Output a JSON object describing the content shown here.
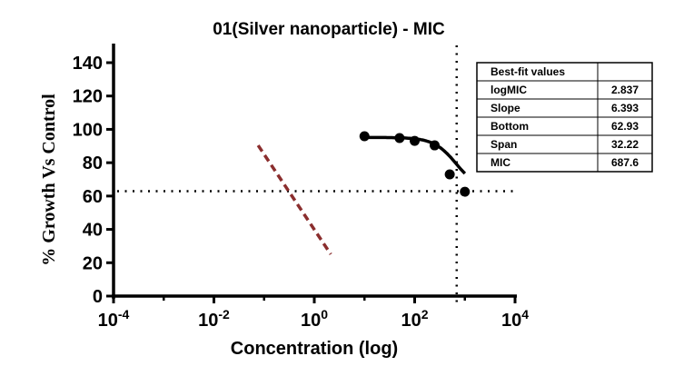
{
  "chart_data": {
    "type": "scatter",
    "title": "01(Silver nanoparticle) - MIC",
    "xlabel": "Concentration (log)",
    "ylabel": "% Growth Vs Control",
    "xscale": "log10",
    "xlim_log10": [
      -4,
      4
    ],
    "ylim": [
      0,
      140
    ],
    "x_ticks": [
      {
        "base": "10",
        "exp": "-4",
        "value_log10": -4
      },
      {
        "base": "10",
        "exp": "-2",
        "value_log10": -2
      },
      {
        "base": "10",
        "exp": "0",
        "value_log10": 0
      },
      {
        "base": "10",
        "exp": "2",
        "value_log10": 2
      },
      {
        "base": "10",
        "exp": "4",
        "value_log10": 4
      }
    ],
    "x_minor_ticks_log10": [
      -3,
      -1,
      1,
      3
    ],
    "y_ticks": [
      0,
      20,
      40,
      60,
      80,
      100,
      120,
      140
    ],
    "grid": false,
    "series": [
      {
        "name": "Silver nanoparticle",
        "marker": "filled-circle",
        "color": "#000000",
        "points": [
          {
            "x": 10,
            "y": 95.9
          },
          {
            "x": 50,
            "y": 94.8
          },
          {
            "x": 100,
            "y": 93.1
          },
          {
            "x": 250,
            "y": 90.4
          },
          {
            "x": 500,
            "y": 73.0
          },
          {
            "x": 1000,
            "y": 62.6
          }
        ],
        "fit": {
          "type": "sigmoid",
          "logMIC": 2.837,
          "slope": 6.393,
          "bottom": 62.93,
          "span": 32.22
        }
      },
      {
        "name": "reference line",
        "style": "dashed",
        "color": "#8b2e2e",
        "points": [
          {
            "x": 0.076,
            "y": 90.4
          },
          {
            "x": 2.13,
            "y": 25.1
          }
        ]
      }
    ],
    "reference_lines": [
      {
        "orientation": "horizontal",
        "y": 62.93,
        "style": "dotted"
      },
      {
        "orientation": "vertical",
        "x": 687.6,
        "style": "dotted"
      }
    ],
    "table": {
      "header": [
        "Best-fit values",
        ""
      ],
      "rows": [
        [
          "logMIC",
          "2.837"
        ],
        [
          "Slope",
          "6.393"
        ],
        [
          "Bottom",
          "62.93"
        ],
        [
          "Span",
          "32.22"
        ],
        [
          "MIC",
          "687.6"
        ]
      ],
      "placement": "top-right"
    }
  }
}
